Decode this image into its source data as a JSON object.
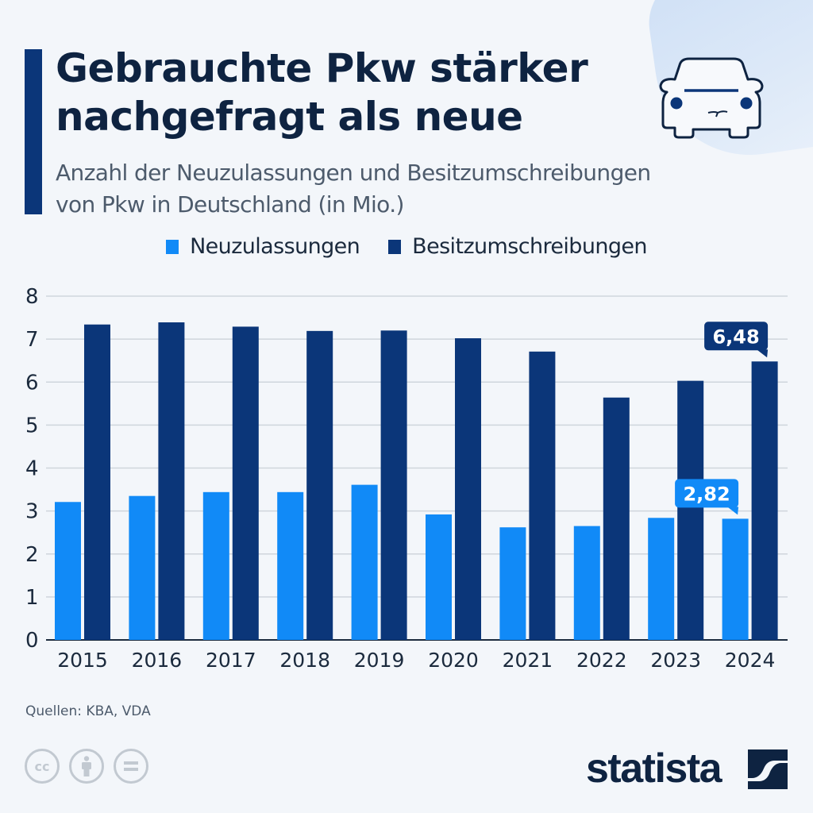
{
  "header": {
    "title_line1": "Gebrauchte Pkw stärker",
    "title_line2": "nachgefragt als neue",
    "subtitle_line1": "Anzahl der Neuzulassungen und Besitzumschreibungen",
    "subtitle_line2": "von Pkw in Deutschland (in Mio.)",
    "icon": "car-icon"
  },
  "colors": {
    "background": "#f3f6fa",
    "accent": "#0b3679",
    "neuzulassungen": "#118af7",
    "besitzumschreibungen": "#0b3679",
    "text_dark": "#0e2341",
    "text_muted": "#4d5b6c",
    "grid": "#cfd5dc"
  },
  "legend": [
    {
      "label": "Neuzulassungen",
      "color": "#118af7"
    },
    {
      "label": "Besitzumschreibungen",
      "color": "#0b3679"
    }
  ],
  "chart_data": {
    "type": "bar",
    "title": "Gebrauchte Pkw stärker nachgefragt als neue",
    "subtitle": "Anzahl der Neuzulassungen und Besitzumschreibungen von Pkw in Deutschland (in Mio.)",
    "xlabel": "",
    "ylabel": "",
    "categories": [
      "2015",
      "2016",
      "2017",
      "2018",
      "2019",
      "2020",
      "2021",
      "2022",
      "2023",
      "2024"
    ],
    "series": [
      {
        "name": "Neuzulassungen",
        "color": "#118af7",
        "values": [
          3.21,
          3.35,
          3.44,
          3.44,
          3.61,
          2.92,
          2.62,
          2.65,
          2.84,
          2.82
        ]
      },
      {
        "name": "Besitzumschreibungen",
        "color": "#0b3679",
        "values": [
          7.34,
          7.39,
          7.29,
          7.19,
          7.2,
          7.02,
          6.71,
          5.64,
          6.03,
          6.48
        ]
      }
    ],
    "ylim": [
      0,
      8
    ],
    "yticks": [
      "0",
      "1",
      "2",
      "3",
      "4",
      "5",
      "6",
      "7",
      "8"
    ],
    "grid": true,
    "legend_position": "top-center",
    "annotations": [
      {
        "series": "Neuzulassungen",
        "category": "2024",
        "text": "2,82"
      },
      {
        "series": "Besitzumschreibungen",
        "category": "2024",
        "text": "6,48"
      }
    ]
  },
  "footer": {
    "source": "Quellen: KBA, VDA",
    "license_icons": [
      "cc-icon",
      "attribution-icon",
      "no-derivatives-icon"
    ],
    "brand": "statista"
  }
}
